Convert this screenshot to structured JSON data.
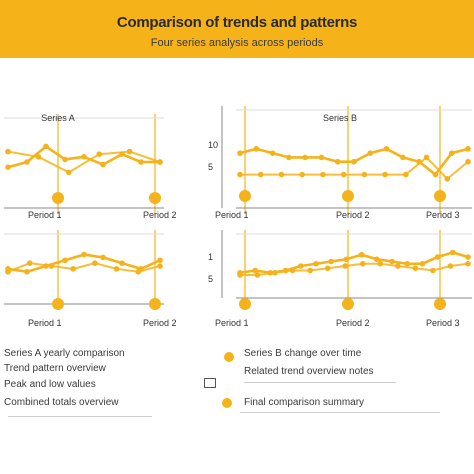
{
  "header": {
    "title": "Comparison of trends and patterns",
    "subtitle": "Four series analysis across periods"
  },
  "colors": {
    "banner": "#f6b319",
    "line": "#f6b319",
    "marker": "#f4b21d",
    "axis": "#888888",
    "grid": "#dddddd"
  },
  "chart_data": [
    {
      "type": "line",
      "title": "Series A",
      "x_start_label": "Period 1",
      "x_end_label": "Period 2",
      "y_ticks": [],
      "series": [
        {
          "values": [
            8,
            10,
            16,
            11,
            12,
            9,
            13,
            10,
            10
          ]
        },
        {
          "values": [
            14,
            12,
            6,
            13,
            14,
            10
          ]
        }
      ],
      "markers": [
        0.0,
        1.0
      ]
    },
    {
      "type": "line",
      "title": "Series B",
      "x_start_label": "Period 1",
      "x_end_label": "Period 2",
      "x_end2_label": "Period 3",
      "y_ticks": [
        "10",
        "5"
      ],
      "series": [
        {
          "values": [
            10,
            11,
            10,
            9,
            9,
            9,
            8,
            8,
            10,
            11,
            9,
            8,
            5,
            10,
            11
          ]
        },
        {
          "values": [
            5,
            5,
            5,
            5,
            5,
            5,
            5,
            5,
            5,
            9,
            4,
            8
          ]
        }
      ],
      "markers": [
        0.0,
        0.5,
        1.0
      ]
    },
    {
      "type": "line",
      "title": "",
      "x_start_label": "Period 1",
      "x_end_label": "Period 2",
      "y_ticks": [],
      "series": [
        {
          "values": [
            6,
            5,
            7,
            9,
            11,
            10,
            8,
            6,
            9
          ]
        },
        {
          "values": [
            5,
            8,
            7,
            6,
            8,
            6,
            5,
            7
          ]
        }
      ],
      "markers": [
        0.0,
        1.0
      ]
    },
    {
      "type": "line",
      "title": "",
      "x_start_label": "Period 1",
      "x_end_label": "Period 2",
      "x_end2_label": "Period 3",
      "y_ticks": [
        "1",
        "5"
      ],
      "series": [
        {
          "values": [
            5,
            6,
            5,
            6,
            8,
            9,
            10,
            11,
            13,
            11,
            10,
            9,
            9,
            12,
            14,
            12
          ]
        },
        {
          "values": [
            4,
            4,
            5,
            6,
            6,
            7,
            8,
            9,
            9,
            8,
            7,
            6,
            8,
            9
          ]
        }
      ],
      "markers": [
        0.0,
        0.5,
        1.0
      ]
    }
  ],
  "legend_left": {
    "rows": [
      "Series A yearly comparison",
      "Trend pattern overview",
      "Peak and low values",
      "Combined totals overview"
    ]
  },
  "legend_right": {
    "rows": [
      "Series B change over time",
      "Related trend overview notes",
      "Final comparison summary"
    ]
  }
}
